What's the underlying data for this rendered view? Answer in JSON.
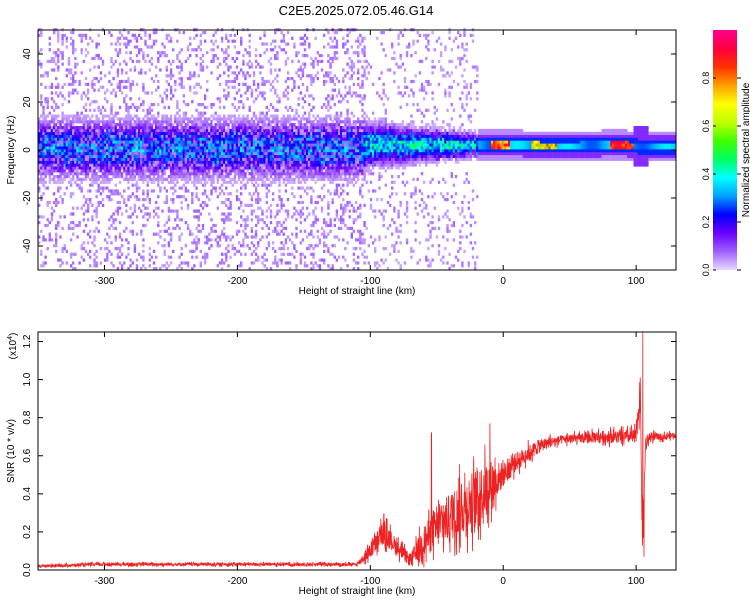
{
  "title": "C2E5.2025.072.05.46.G14",
  "chart_data": [
    {
      "type": "heatmap",
      "name": "spectrogram",
      "xlabel": "Height of straight line (km)",
      "ylabel": "Frequency (Hz)",
      "xlim": [
        -350,
        130
      ],
      "ylim": [
        -50,
        50
      ],
      "x_ticks": [
        -300,
        -200,
        -100,
        0,
        100
      ],
      "y_ticks": [
        -40,
        -20,
        0,
        20,
        40
      ],
      "colorbar": {
        "label": "Normalized spectral amplitude",
        "range": [
          0,
          1
        ],
        "ticks": [
          0.0,
          0.2,
          0.4,
          0.6,
          0.8
        ],
        "colormap": [
          "#e8d8ff",
          "#a060ff",
          "#6a00ff",
          "#0000ff",
          "#00a0ff",
          "#00ffff",
          "#00ff60",
          "#40ff00",
          "#c0ff00",
          "#ffff00",
          "#ffa000",
          "#ff3000",
          "#ff0040",
          "#ff0090"
        ]
      },
      "features": {
        "noisy_region": {
          "x_range": [
            -350,
            -105
          ],
          "core_band": [
            -10,
            10
          ],
          "scatter_band": [
            -50,
            50
          ]
        },
        "transition_region": {
          "x_range": [
            -105,
            -20
          ],
          "band": [
            -8,
            8
          ]
        },
        "coherent_band": [
          {
            "x": -20,
            "f": 1.5
          },
          {
            "x": 0,
            "f": 1.5
          },
          {
            "x": 40,
            "f": 1.2
          },
          {
            "x": 90,
            "f": 1.5
          },
          {
            "x": 100,
            "f": 1.0
          },
          {
            "x": 130,
            "f": 1.0
          }
        ]
      }
    },
    {
      "type": "line",
      "name": "snr",
      "xlabel": "Height of straight line (km)",
      "ylabel": "SNR (10 * v/v)",
      "y_multiplier_label": "(x10",
      "y_multiplier_exp": "4",
      "y_multiplier_close": ")",
      "xlim": [
        -350,
        130
      ],
      "ylim": [
        0,
        1.25
      ],
      "x_ticks": [
        -300,
        -200,
        -100,
        0,
        100
      ],
      "y_ticks": [
        0.0,
        0.2,
        0.4,
        0.6,
        0.8,
        1.0,
        1.2
      ],
      "color": "#ee2222",
      "series": {
        "x": [
          -350,
          -300,
          -250,
          -200,
          -150,
          -110,
          -100,
          -90,
          -80,
          -70,
          -60,
          -50,
          -40,
          -30,
          -20,
          -10,
          0,
          10,
          20,
          30,
          40,
          50,
          60,
          70,
          80,
          90,
          100,
          103,
          105,
          107,
          110,
          120,
          130
        ],
        "y": [
          0.02,
          0.03,
          0.03,
          0.03,
          0.03,
          0.03,
          0.1,
          0.2,
          0.12,
          0.05,
          0.15,
          0.22,
          0.28,
          0.33,
          0.38,
          0.45,
          0.5,
          0.57,
          0.62,
          0.66,
          0.68,
          0.69,
          0.69,
          0.7,
          0.7,
          0.7,
          0.7,
          0.95,
          0.1,
          0.65,
          0.7,
          0.7,
          0.71
        ],
        "noise": [
          0.008,
          0.01,
          0.01,
          0.01,
          0.01,
          0.01,
          0.05,
          0.08,
          0.05,
          0.04,
          0.1,
          0.13,
          0.16,
          0.18,
          0.2,
          0.16,
          0.08,
          0.06,
          0.05,
          0.04,
          0.03,
          0.03,
          0.03,
          0.04,
          0.04,
          0.04,
          0.05,
          0.15,
          0.1,
          0.05,
          0.03,
          0.02,
          0.02
        ]
      },
      "spikes": [
        {
          "x": -54,
          "y": 0.72
        },
        {
          "x": -10,
          "y": 0.77
        },
        {
          "x": 105,
          "y": 1.25
        },
        {
          "x": 106,
          "y": 0.07
        }
      ]
    }
  ]
}
